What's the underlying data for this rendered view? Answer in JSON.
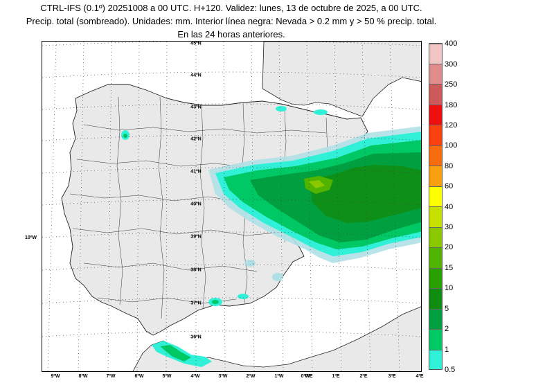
{
  "header": {
    "line1": "CTRL-IFS (0.1º) 20251008 a 00 UTC. H+120. Validez: lunes, 13 de octubre de 2025, a 00 UTC.",
    "line2": "Precip. total (sombreado). Unidades: mm. Interior línea negra: Nevada > 0.2 mm y > 50 % precip. total.",
    "line3": "En las 24 horas anteriores."
  },
  "map": {
    "lat_labels": [
      "45ºN",
      "44ºN",
      "43ºN",
      "42ºN",
      "41ºN",
      "40ºN",
      "39ºN",
      "38ºN",
      "37ºN",
      "36ºN"
    ],
    "lon_labels": [
      "9ºW",
      "8ºW",
      "7ºW",
      "6ºW",
      "5ºW",
      "4ºW",
      "3ºW",
      "2ºW",
      "1ºW",
      "0ºW",
      "0ºE",
      "1ºE",
      "2ºE",
      "3ºE",
      "4ºE"
    ],
    "side_label": "10ºW",
    "land_color": "#e9e9e9",
    "sea_color": "#ffffff"
  },
  "legend": {
    "levels": [
      "400",
      "300",
      "250",
      "180",
      "120",
      "100",
      "80",
      "60",
      "40",
      "30",
      "20",
      "15",
      "10",
      "5",
      "2",
      "1",
      "0.5"
    ],
    "colors": [
      "#f2c5c5",
      "#e08c8c",
      "#cc5a5a",
      "#ee1010",
      "#f84010",
      "#f86c10",
      "#f8a010",
      "#ffff00",
      "#c6e000",
      "#8ac800",
      "#50b400",
      "#28a000",
      "#108c10",
      "#00a040",
      "#00c864",
      "#30f0d8",
      "#b0e0e6"
    ]
  }
}
